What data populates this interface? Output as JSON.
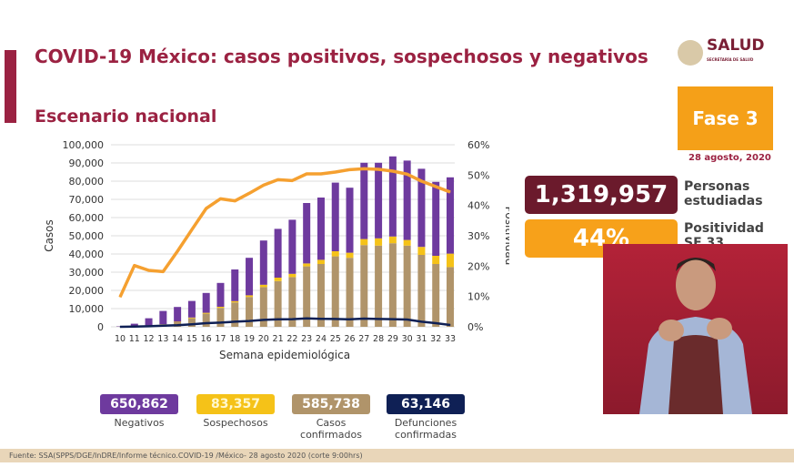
{
  "header": {
    "title": "COVID-19 México: casos positivos, sospechosos y negativos",
    "subtitle": "Escenario nacional",
    "logo_text": "SALUD",
    "logo_small": "SECRETARÍA DE SALUD"
  },
  "phase": {
    "label": "Fase 3",
    "date": "28 agosto, 2020"
  },
  "stats": [
    {
      "value": "1,319,957",
      "label1": "Personas",
      "label2": "estudiadas",
      "color": "#6b1a2c"
    },
    {
      "value": "44%",
      "label1": "Positividad",
      "label2": "SE 33",
      "color": "#f7a11a"
    }
  ],
  "summary": [
    {
      "value": "650,862",
      "label": "Negativos",
      "color": "#6e3a9e"
    },
    {
      "value": "83,357",
      "label": "Sospechosos",
      "color": "#f5c218"
    },
    {
      "value": "585,738",
      "label": "Casos confirmados",
      "color": "#b0946a"
    },
    {
      "value": "63,146",
      "label": "Defunciones confirmadas",
      "color": "#0f2055"
    }
  ],
  "footer": "Fuente: SSA(SPPS/DGE/InDRE/Informe técnico.COVID-19 /México- 28 agosto 2020 (corte 9:00hrs)",
  "chart_data": {
    "type": "bar",
    "stacked": true,
    "xlabel": "Semana epidemiológica",
    "ylabel": "Casos",
    "y2label": "Positividad",
    "ylim": [
      0,
      100000
    ],
    "y2lim": [
      0,
      60
    ],
    "yticks": [
      "0",
      "10,000",
      "20,000",
      "30,000",
      "40,000",
      "50,000",
      "60,000",
      "70,000",
      "80,000",
      "90,000",
      "100,000"
    ],
    "y2ticks": [
      "0%",
      "10%",
      "20%",
      "30%",
      "40%",
      "50%",
      "60%"
    ],
    "grid": true,
    "categories": [
      "10",
      "11",
      "12",
      "13",
      "14",
      "15",
      "16",
      "17",
      "18",
      "19",
      "20",
      "21",
      "22",
      "23",
      "24",
      "25",
      "26",
      "27",
      "28",
      "29",
      "30",
      "31",
      "32",
      "33"
    ],
    "series": [
      {
        "key": "confirmados",
        "color": "#b0946a",
        "values": [
          100,
          300,
          700,
          1200,
          2500,
          4700,
          7200,
          10400,
          13400,
          16400,
          21800,
          25100,
          27300,
          33200,
          34500,
          38700,
          37900,
          44900,
          44600,
          45900,
          44600,
          39500,
          34500,
          32800
        ]
      },
      {
        "key": "sospechosos",
        "color": "#f5c218",
        "values": [
          0,
          50,
          100,
          200,
          300,
          400,
          500,
          600,
          700,
          900,
          1300,
          1900,
          1800,
          1600,
          2300,
          2800,
          2800,
          3300,
          4000,
          3700,
          3100,
          4400,
          4500,
          7400
        ]
      },
      {
        "key": "negativos",
        "color": "#6e3a9e",
        "values": [
          200,
          1350,
          3900,
          7300,
          8100,
          9100,
          10900,
          13100,
          17400,
          20600,
          24300,
          26800,
          29700,
          33200,
          34200,
          37700,
          35700,
          41900,
          41500,
          44000,
          43600,
          42900,
          40600,
          41900
        ]
      },
      {
        "key": "defunciones",
        "type": "line",
        "color": "#0f2055",
        "values": [
          0,
          100,
          300,
          600,
          900,
          1400,
          2000,
          2300,
          2800,
          3200,
          3800,
          4100,
          4200,
          4600,
          4400,
          4300,
          4100,
          4500,
          4300,
          4200,
          4000,
          2800,
          2000,
          1000
        ]
      },
      {
        "key": "positividad",
        "type": "line",
        "axis": "right",
        "color": "#f5a030",
        "values": [
          9.8,
          20.2,
          18.6,
          18.2,
          24.9,
          32,
          39,
          42.2,
          41.5,
          44,
          46.7,
          48.5,
          48.2,
          50.4,
          50.4,
          51,
          51.8,
          52.1,
          51.9,
          51.3,
          50.3,
          48,
          46.2,
          44.4
        ]
      }
    ]
  }
}
